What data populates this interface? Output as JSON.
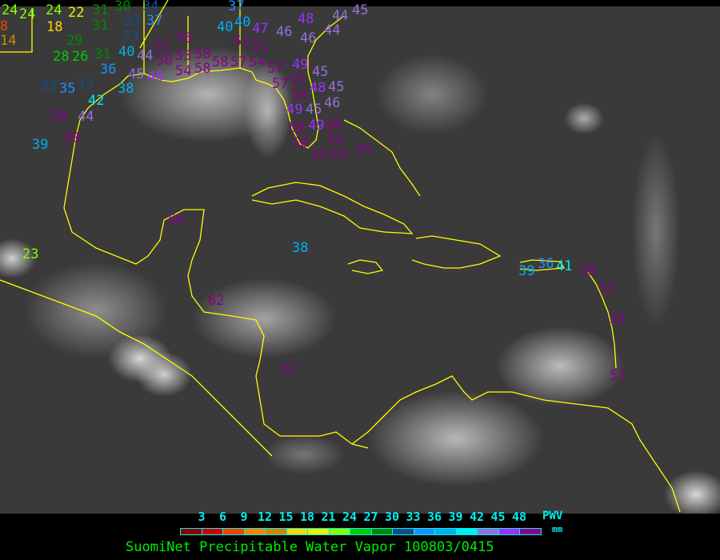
{
  "title": "SuomiNet Precipitable Water Vapor 100803/0415",
  "legend": {
    "unit_top": "PWV",
    "unit_bottom": "mm",
    "ticks": [
      "3",
      "6",
      "9",
      "12",
      "15",
      "18",
      "21",
      "24",
      "27",
      "30",
      "33",
      "36",
      "39",
      "42",
      "45",
      "48"
    ],
    "colors": [
      "#8b0000",
      "#cc0000",
      "#ee4400",
      "#ff8000",
      "#cc8800",
      "#ffd700",
      "#eeee00",
      "#88ff00",
      "#00cc00",
      "#008800",
      "#104e8b",
      "#1e90ff",
      "#00b0ee",
      "#00eeee",
      "#9370db",
      "#9b30ff",
      "#8b008b"
    ]
  },
  "coastline_color": "#ffff00",
  "stations": [
    {
      "value": "24"
    },
    {
      "value": "24"
    },
    {
      "value": "24"
    },
    {
      "value": "22"
    },
    {
      "value": "31"
    },
    {
      "value": "30"
    },
    {
      "value": "32"
    },
    {
      "value": "34"
    },
    {
      "value": "8"
    },
    {
      "value": "18"
    },
    {
      "value": "14"
    },
    {
      "value": "31"
    },
    {
      "value": "33"
    },
    {
      "value": "37"
    },
    {
      "value": "29"
    },
    {
      "value": "26"
    },
    {
      "value": "28"
    },
    {
      "value": "31"
    },
    {
      "value": "40"
    },
    {
      "value": "44"
    },
    {
      "value": "36"
    },
    {
      "value": "51"
    },
    {
      "value": "50"
    },
    {
      "value": "56"
    },
    {
      "value": "53"
    },
    {
      "value": "58"
    },
    {
      "value": "54"
    },
    {
      "value": "58"
    },
    {
      "value": "58"
    },
    {
      "value": "57"
    },
    {
      "value": "54"
    },
    {
      "value": "45"
    },
    {
      "value": "48"
    },
    {
      "value": "33"
    },
    {
      "value": "35"
    },
    {
      "value": "33"
    },
    {
      "value": "38"
    },
    {
      "value": "42"
    },
    {
      "value": "44"
    },
    {
      "value": "50"
    },
    {
      "value": "50"
    },
    {
      "value": "39"
    },
    {
      "value": "37"
    },
    {
      "value": "40"
    },
    {
      "value": "40"
    },
    {
      "value": "47"
    },
    {
      "value": "53"
    },
    {
      "value": "51"
    },
    {
      "value": "46"
    },
    {
      "value": "48"
    },
    {
      "value": "46"
    },
    {
      "value": "44"
    },
    {
      "value": "44"
    },
    {
      "value": "45"
    },
    {
      "value": "57"
    },
    {
      "value": "57"
    },
    {
      "value": "55"
    },
    {
      "value": "49"
    },
    {
      "value": "50"
    },
    {
      "value": "48"
    },
    {
      "value": "45"
    },
    {
      "value": "49"
    },
    {
      "value": "45"
    },
    {
      "value": "46"
    },
    {
      "value": "45"
    },
    {
      "value": "49"
    },
    {
      "value": "50"
    },
    {
      "value": "50"
    },
    {
      "value": "50"
    },
    {
      "value": "52"
    },
    {
      "value": "55"
    },
    {
      "value": "53"
    },
    {
      "value": "55"
    },
    {
      "value": "50"
    },
    {
      "value": "23"
    },
    {
      "value": "38"
    },
    {
      "value": "62"
    },
    {
      "value": "61"
    },
    {
      "value": "39"
    },
    {
      "value": "36"
    },
    {
      "value": "41"
    },
    {
      "value": "50"
    },
    {
      "value": "57"
    },
    {
      "value": "58"
    },
    {
      "value": "57"
    }
  ]
}
